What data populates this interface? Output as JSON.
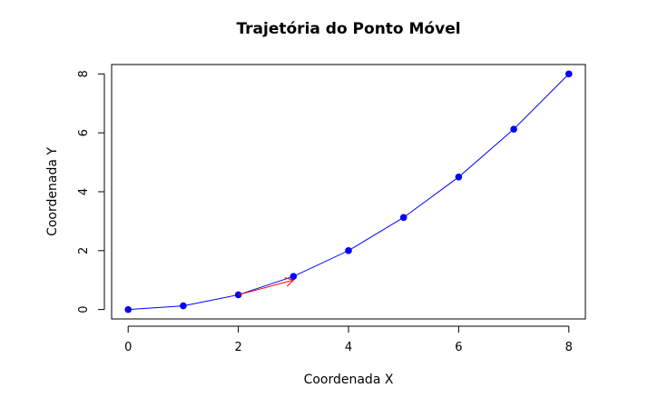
{
  "chart_data": {
    "type": "line",
    "title": "Trajetória do Ponto Móvel",
    "xlabel": "Coordenada X",
    "ylabel": "Coordenada Y",
    "xlim": [
      -0.3,
      8.3
    ],
    "ylim": [
      -0.32,
      8.32
    ],
    "xticks": [
      "0",
      "2",
      "4",
      "6",
      "8"
    ],
    "yticks": [
      "0",
      "2",
      "4",
      "6",
      "8"
    ],
    "grid": false,
    "series": [
      {
        "x": [
          0,
          1,
          2,
          3,
          4,
          5,
          6,
          7,
          8
        ],
        "y": [
          0,
          0.125,
          0.5,
          1.125,
          2,
          3.125,
          4.5,
          6.125,
          8
        ],
        "color": "#0000ff",
        "marker": "filled-circle"
      }
    ],
    "annotations": [
      {
        "type": "arrow",
        "from": [
          2,
          0.5
        ],
        "to": [
          3,
          1.0
        ],
        "color": "#ff0000"
      }
    ]
  }
}
